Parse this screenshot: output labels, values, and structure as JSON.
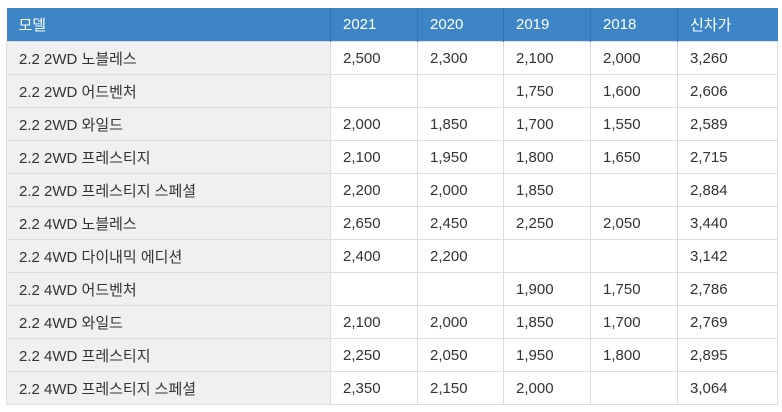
{
  "colors": {
    "header_bg": "#3d85c7",
    "header_divider": "#3173b3",
    "header_text": "#ffffff",
    "row_label_bg": "#f0f0f0",
    "cell_bg": "#ffffff",
    "border": "#dddddd",
    "text": "#333333"
  },
  "chart_data": {
    "type": "table",
    "title": "",
    "columns": [
      "모델",
      "2021",
      "2020",
      "2019",
      "2018",
      "신차가"
    ],
    "rows": [
      [
        "2.2 2WD 노블레스",
        "2,500",
        "2,300",
        "2,100",
        "2,000",
        "3,260"
      ],
      [
        "2.2 2WD 어드벤처",
        "",
        "",
        "1,750",
        "1,600",
        "2,606"
      ],
      [
        "2.2 2WD 와일드",
        "2,000",
        "1,850",
        "1,700",
        "1,550",
        "2,589"
      ],
      [
        "2.2 2WD 프레스티지",
        "2,100",
        "1,950",
        "1,800",
        "1,650",
        "2,715"
      ],
      [
        "2.2 2WD 프레스티지 스페셜",
        "2,200",
        "2,000",
        "1,850",
        "",
        "2,884"
      ],
      [
        "2.2 4WD 노블레스",
        "2,650",
        "2,450",
        "2,250",
        "2,050",
        "3,440"
      ],
      [
        "2.2 4WD 다이내믹 에디션",
        "2,400",
        "2,200",
        "",
        "",
        "3,142"
      ],
      [
        "2.2 4WD 어드벤처",
        "",
        "",
        "1,900",
        "1,750",
        "2,786"
      ],
      [
        "2.2 4WD 와일드",
        "2,100",
        "2,000",
        "1,850",
        "1,700",
        "2,769"
      ],
      [
        "2.2 4WD 프레스티지",
        "2,250",
        "2,050",
        "1,950",
        "1,800",
        "2,895"
      ],
      [
        "2.2 4WD 프레스티지 스페셜",
        "2,350",
        "2,150",
        "2,000",
        "",
        "3,064"
      ]
    ]
  }
}
